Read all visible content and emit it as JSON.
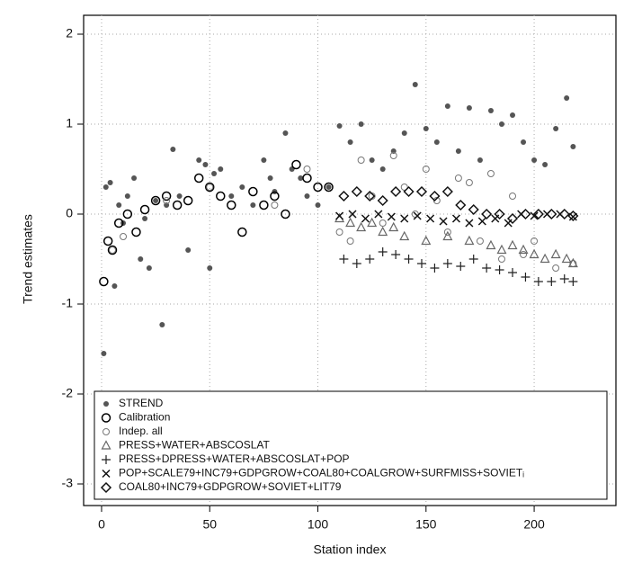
{
  "chart_data": {
    "type": "scatter",
    "x_label": "Station index",
    "y_label": "Trend estimates",
    "xlim": [
      -8.3,
      237.8
    ],
    "ylim": [
      -3.24,
      2.21
    ],
    "xticks": [
      0,
      50,
      100,
      150,
      200
    ],
    "yticks": [
      -3,
      -2,
      -1,
      0,
      1,
      2
    ],
    "grid": true,
    "legend_position": "bottom",
    "series": [
      {
        "name": "STREND",
        "color": "#555555",
        "marker": "dot",
        "x": [
          1,
          2,
          4,
          6,
          8,
          10,
          12,
          15,
          18,
          20,
          22,
          25,
          28,
          30,
          33,
          36,
          40,
          45,
          48,
          50,
          52,
          55,
          60,
          65,
          70,
          75,
          78,
          80,
          85,
          88,
          92,
          95,
          100,
          105,
          110,
          115,
          120,
          125,
          130,
          135,
          140,
          145,
          150,
          155,
          160,
          165,
          170,
          175,
          180,
          185,
          190,
          195,
          200,
          205,
          210,
          215,
          218
        ],
        "values": [
          -1.55,
          0.3,
          0.35,
          -0.8,
          0.1,
          -0.1,
          0.2,
          0.4,
          -0.5,
          -0.05,
          -0.6,
          0.15,
          -1.23,
          0.1,
          0.72,
          0.2,
          -0.4,
          0.6,
          0.55,
          -0.6,
          0.45,
          0.5,
          0.2,
          0.3,
          0.1,
          0.6,
          0.4,
          0.25,
          0.9,
          0.5,
          0.4,
          0.2,
          0.1,
          0.3,
          0.98,
          0.8,
          1.0,
          0.6,
          0.5,
          0.7,
          0.9,
          1.44,
          0.95,
          0.8,
          1.2,
          0.7,
          1.18,
          0.6,
          1.15,
          1.0,
          1.1,
          0.8,
          0.6,
          0.55,
          0.95,
          1.29,
          0.75
        ]
      },
      {
        "name": "Calibration",
        "color": "#000000",
        "marker": "circle",
        "x": [
          1,
          3,
          5,
          8,
          12,
          16,
          20,
          25,
          30,
          35,
          40,
          45,
          50,
          55,
          60,
          65,
          70,
          75,
          80,
          85,
          90,
          95,
          100,
          105
        ],
        "values": [
          -0.75,
          -0.3,
          -0.4,
          -0.1,
          0.0,
          -0.2,
          0.05,
          0.15,
          0.2,
          0.1,
          0.15,
          0.4,
          0.3,
          0.2,
          0.1,
          -0.2,
          0.25,
          0.1,
          0.2,
          0.0,
          0.55,
          0.4,
          0.3,
          0.3
        ]
      },
      {
        "name": "Indep. all",
        "color": "#777777",
        "marker": "circle-small",
        "x": [
          5,
          10,
          30,
          50,
          80,
          95,
          110,
          115,
          120,
          125,
          130,
          135,
          140,
          145,
          150,
          155,
          160,
          165,
          170,
          175,
          180,
          185,
          190,
          195,
          200,
          210,
          218
        ],
        "values": [
          -0.4,
          -0.25,
          0.15,
          0.3,
          0.1,
          0.5,
          -0.2,
          -0.3,
          0.6,
          0.2,
          -0.1,
          0.65,
          0.3,
          0.0,
          0.5,
          0.15,
          -0.2,
          0.4,
          0.35,
          -0.3,
          0.45,
          -0.5,
          0.2,
          -0.45,
          -0.3,
          -0.6,
          -0.55
        ]
      },
      {
        "name": "PRESS+WATER+ABSCOSLAT",
        "color": "#666666",
        "marker": "triangle",
        "x": [
          110,
          115,
          120,
          125,
          130,
          135,
          140,
          150,
          160,
          170,
          180,
          185,
          190,
          195,
          200,
          205,
          210,
          215,
          218
        ],
        "values": [
          -0.05,
          -0.1,
          -0.15,
          -0.1,
          -0.2,
          -0.15,
          -0.25,
          -0.3,
          -0.25,
          -0.3,
          -0.35,
          -0.4,
          -0.35,
          -0.4,
          -0.45,
          -0.5,
          -0.45,
          -0.5,
          -0.55
        ]
      },
      {
        "name": "PRESS+DPRESS+WATER+ABSCOSLAT+POP",
        "color": "#222222",
        "marker": "plus",
        "x": [
          112,
          118,
          124,
          130,
          136,
          142,
          148,
          154,
          160,
          166,
          172,
          178,
          184,
          190,
          196,
          202,
          208,
          214,
          218
        ],
        "values": [
          -0.5,
          -0.55,
          -0.5,
          -0.42,
          -0.45,
          -0.5,
          -0.55,
          -0.6,
          -0.55,
          -0.58,
          -0.5,
          -0.6,
          -0.62,
          -0.65,
          -0.7,
          -0.75,
          -0.75,
          -0.72,
          -0.75
        ]
      },
      {
        "name": "POP+SCALE79+INC79+GDPGROW+COAL80+COALGROW+SURFMISS+SOVIETᵢ",
        "color": "#111111",
        "marker": "cross",
        "x": [
          110,
          116,
          122,
          128,
          134,
          140,
          146,
          152,
          158,
          164,
          170,
          176,
          182,
          188,
          194,
          200,
          206,
          212,
          218
        ],
        "values": [
          -0.02,
          0.0,
          -0.05,
          0.0,
          -0.03,
          -0.05,
          -0.02,
          -0.05,
          -0.08,
          -0.05,
          -0.1,
          -0.08,
          -0.05,
          -0.1,
          0.0,
          -0.02,
          0.0,
          0.0,
          -0.03
        ]
      },
      {
        "name": "COAL80+INC79+GDPGROW+SOVIET+LIT79",
        "color": "#111111",
        "marker": "diamond",
        "x": [
          112,
          118,
          124,
          130,
          136,
          142,
          148,
          154,
          160,
          166,
          172,
          178,
          184,
          190,
          196,
          202,
          208,
          214,
          218
        ],
        "values": [
          0.2,
          0.25,
          0.2,
          0.15,
          0.25,
          0.25,
          0.25,
          0.2,
          0.25,
          0.1,
          0.05,
          0.0,
          0.0,
          -0.05,
          0.0,
          0.0,
          0.0,
          0.0,
          -0.02
        ]
      }
    ]
  }
}
